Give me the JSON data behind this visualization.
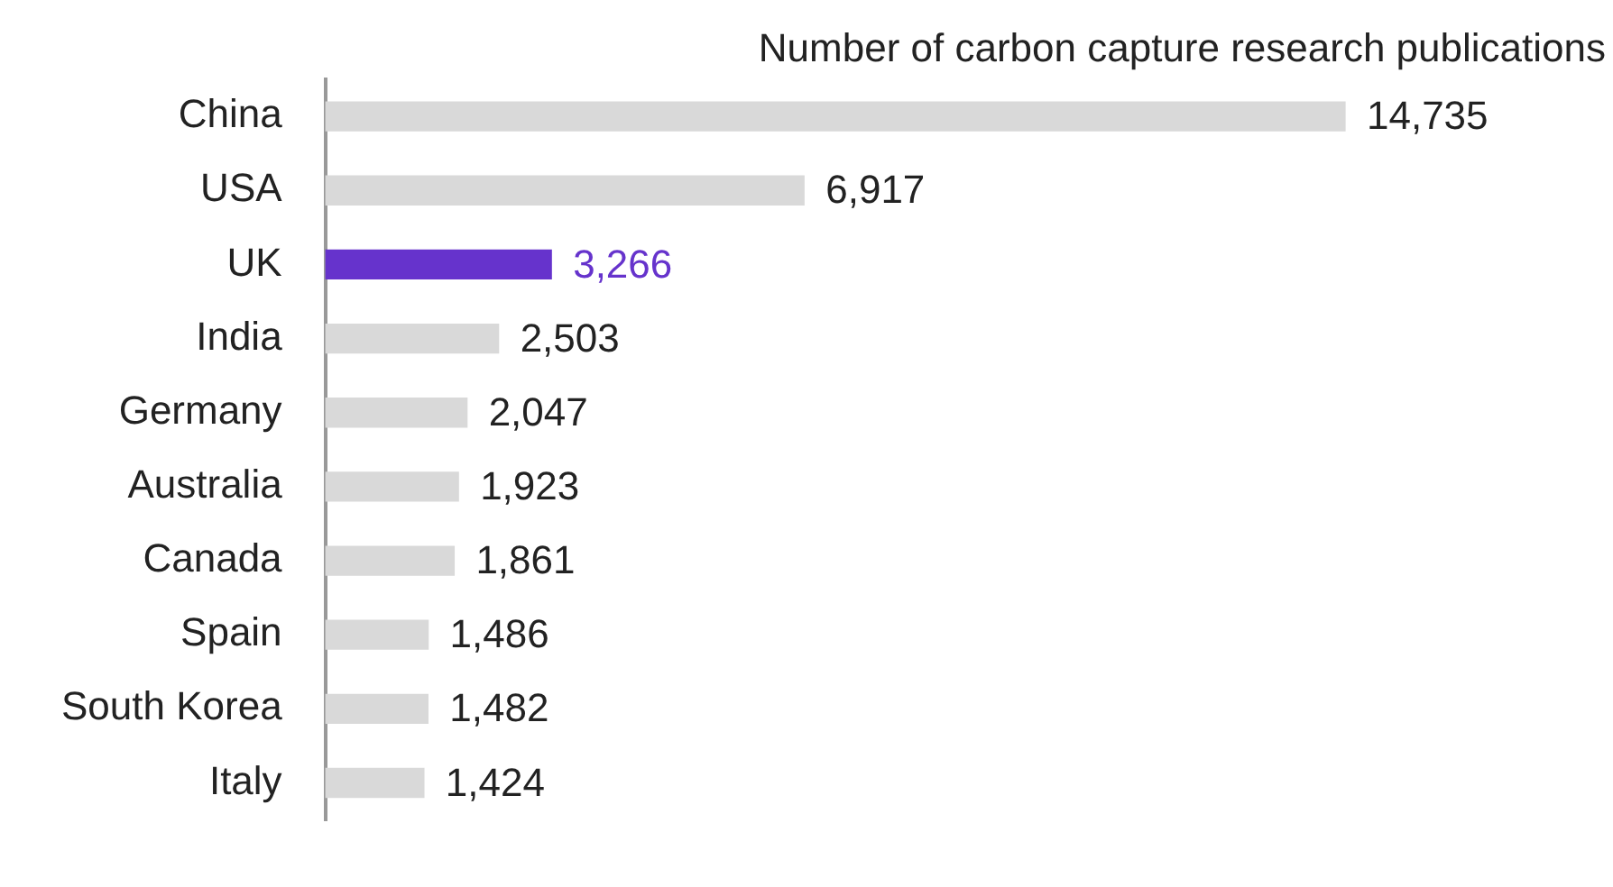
{
  "chart_data": {
    "type": "bar",
    "orientation": "horizontal",
    "title": "Number of carbon capture research publications",
    "categories": [
      "China",
      "USA",
      "UK",
      "India",
      "Germany",
      "Australia",
      "Canada",
      "Spain",
      "South Korea",
      "Italy"
    ],
    "values": [
      14735,
      6917,
      3266,
      2503,
      2047,
      1923,
      1861,
      1486,
      1482,
      1424
    ],
    "colors": [
      "#d9d9d9",
      "#d9d9d9",
      "#6633cc",
      "#d9d9d9",
      "#d9d9d9",
      "#d9d9d9",
      "#d9d9d9",
      "#d9d9d9",
      "#d9d9d9",
      "#d9d9d9"
    ],
    "value_labels": [
      "14,735",
      "6,917",
      "3,266",
      "2,503",
      "2,047",
      "1,923",
      "1,861",
      "1,486",
      "1,482",
      "1,424"
    ],
    "legend": false
  }
}
